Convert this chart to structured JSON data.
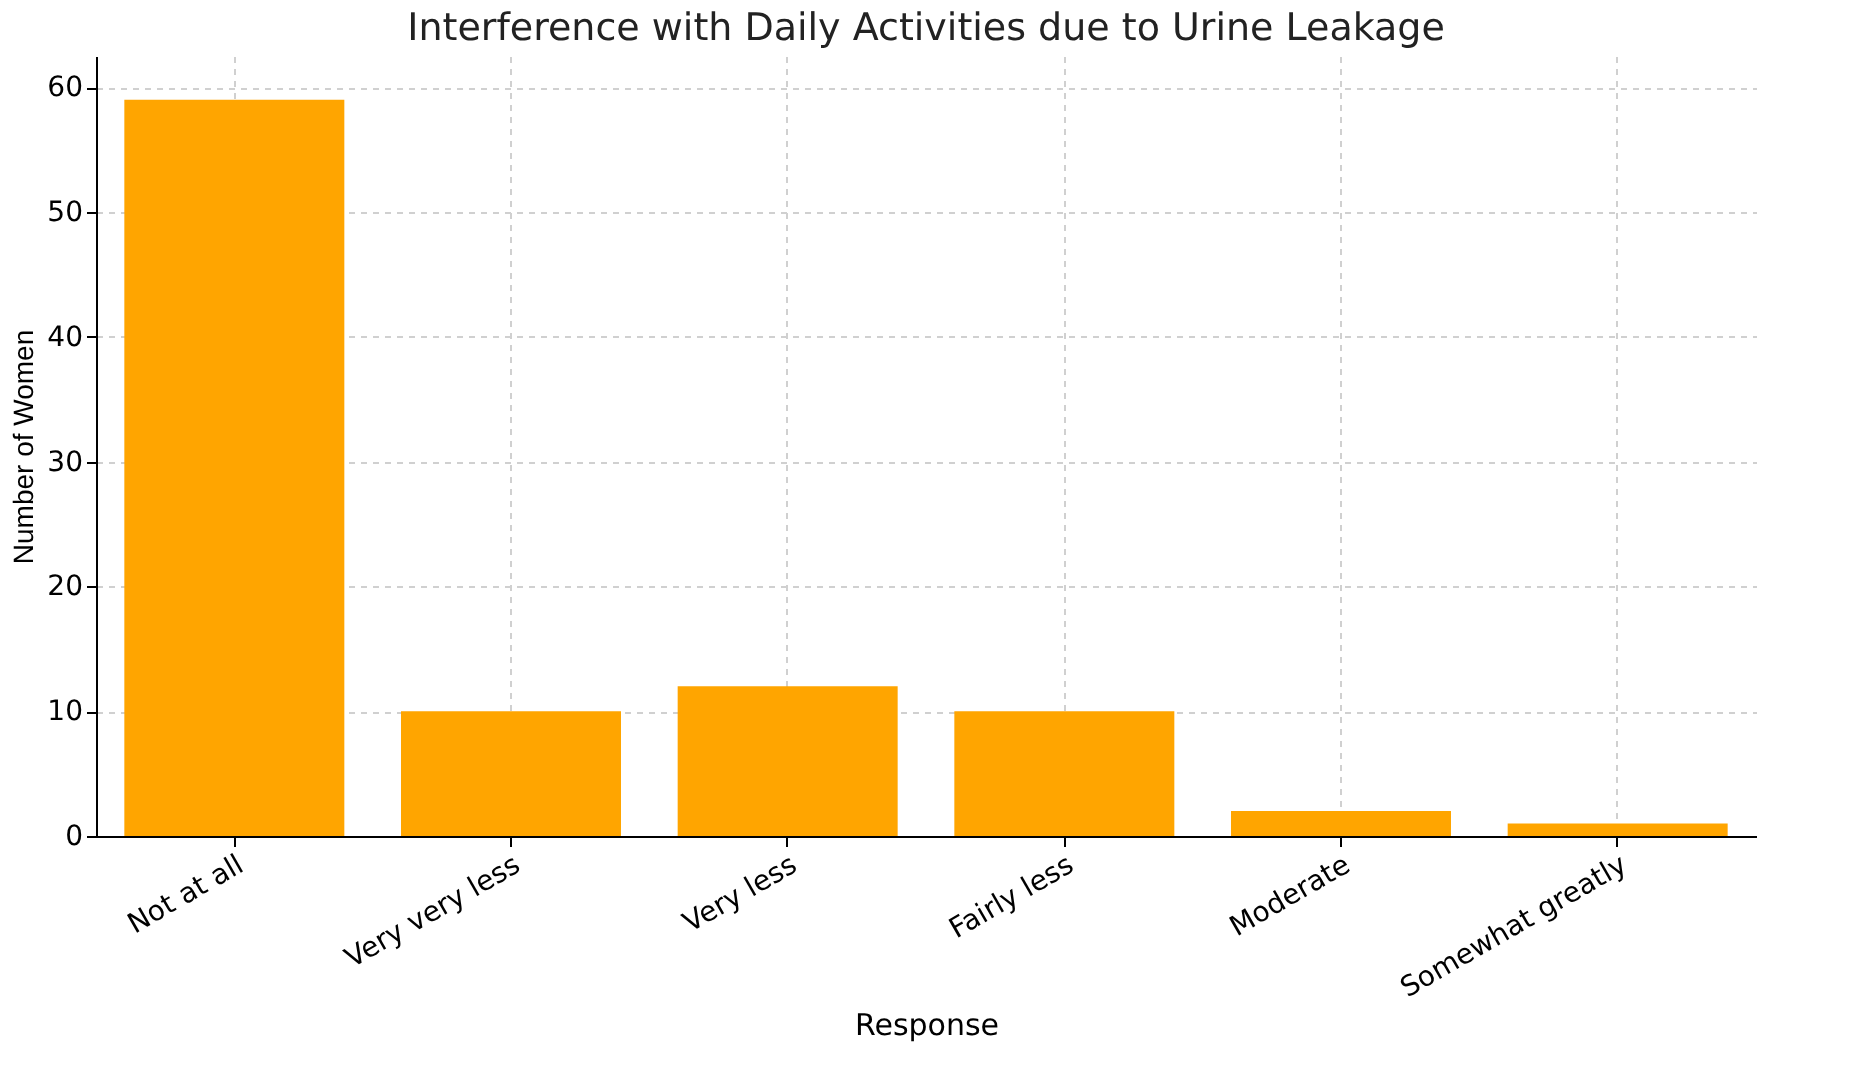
{
  "chart_data": {
    "type": "bar",
    "title": "Interference with Daily Activities due to Urine Leakage",
    "xlabel": "Response",
    "ylabel": "Number of Women",
    "categories": [
      "Not at all",
      "Very very less",
      "Very less",
      "Fairly less",
      "Moderate",
      "Somewhat greatly"
    ],
    "values": [
      59,
      10,
      12,
      10,
      2,
      1
    ],
    "color": "#ffa500",
    "ylim": [
      0,
      62.5
    ],
    "yticks": [
      0,
      10,
      20,
      30,
      40,
      50,
      60
    ],
    "grid": true
  }
}
